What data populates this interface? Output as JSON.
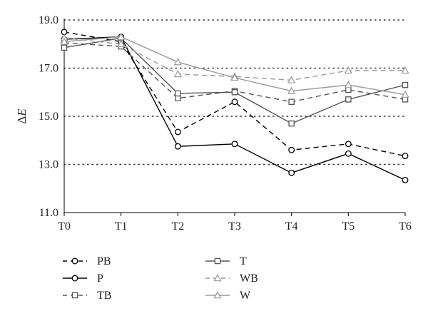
{
  "chart_data": {
    "type": "line",
    "ylabel": "ΔE",
    "ylim": [
      11.0,
      19.0
    ],
    "yticks": [
      "11.0",
      "13.0",
      "15.0",
      "17.0",
      "19.0"
    ],
    "grid": "horizontal dotted",
    "categories": [
      "T0",
      "T1",
      "T2",
      "T3",
      "T4",
      "T5",
      "T6"
    ],
    "legend_position": "bottom",
    "series": [
      {
        "name": "PB",
        "values": [
          18.5,
          18.1,
          14.35,
          15.6,
          13.6,
          13.85,
          13.35
        ],
        "color": "#000000",
        "dash": "dashed",
        "marker": "circle"
      },
      {
        "name": "P",
        "values": [
          18.2,
          18.3,
          13.75,
          13.85,
          12.65,
          13.45,
          12.35
        ],
        "color": "#000000",
        "dash": "solid",
        "marker": "circle"
      },
      {
        "name": "TB",
        "values": [
          18.05,
          17.9,
          15.75,
          16.05,
          15.6,
          16.1,
          15.7
        ],
        "color": "#555555",
        "dash": "dashed",
        "marker": "square"
      },
      {
        "name": "T",
        "values": [
          17.85,
          18.25,
          15.95,
          16.0,
          14.7,
          15.7,
          16.3
        ],
        "color": "#555555",
        "dash": "solid",
        "marker": "square"
      },
      {
        "name": "WB",
        "values": [
          18.25,
          18.0,
          16.75,
          16.65,
          16.5,
          16.9,
          16.9
        ],
        "color": "#999999",
        "dash": "dashed",
        "marker": "triangle"
      },
      {
        "name": "W",
        "values": [
          18.1,
          18.3,
          17.25,
          16.6,
          16.05,
          16.3,
          15.9
        ],
        "color": "#999999",
        "dash": "solid",
        "marker": "triangle"
      }
    ]
  }
}
